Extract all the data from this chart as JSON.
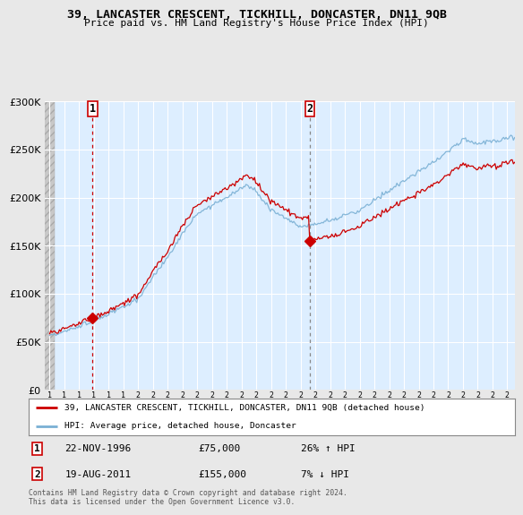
{
  "title1": "39, LANCASTER CRESCENT, TICKHILL, DONCASTER, DN11 9QB",
  "title2": "Price paid vs. HM Land Registry's House Price Index (HPI)",
  "legend_line1": "39, LANCASTER CRESCENT, TICKHILL, DONCASTER, DN11 9QB (detached house)",
  "legend_line2": "HPI: Average price, detached house, Doncaster",
  "annotation1_date": "22-NOV-1996",
  "annotation1_price": "£75,000",
  "annotation1_hpi": "26% ↑ HPI",
  "annotation2_date": "19-AUG-2011",
  "annotation2_price": "£155,000",
  "annotation2_hpi": "7% ↓ HPI",
  "footnote": "Contains HM Land Registry data © Crown copyright and database right 2024.\nThis data is licensed under the Open Government Licence v3.0.",
  "plot_color_red": "#cc0000",
  "plot_color_blue": "#7ab0d4",
  "background_color": "#e8e8e8",
  "plot_bg_color": "#ddeeff",
  "ylim": [
    0,
    300000
  ],
  "yticks": [
    0,
    50000,
    100000,
    150000,
    200000,
    250000,
    300000
  ],
  "sale1_x": 1996.9,
  "sale1_y": 75000,
  "sale2_x": 2011.62,
  "sale2_y": 155000,
  "xmin": 1994.0,
  "xmax": 2025.5
}
